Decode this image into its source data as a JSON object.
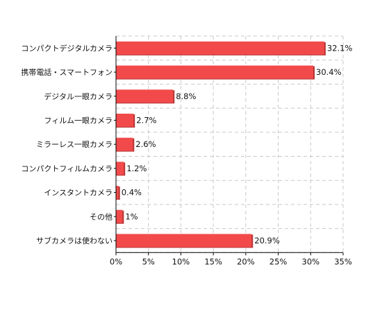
{
  "chart_data": {
    "type": "bar",
    "orientation": "horizontal",
    "categories": [
      "コンパクトデジタルカメラ",
      "携帯電話・スマートフォン",
      "デジタル一眼カメラ",
      "フィルム一眼カメラ",
      "ミラーレス一眼カメラ",
      "コンパクトフィルムカメラ",
      "インスタントカメラ",
      "その他",
      "サブカメラは使わない"
    ],
    "values": [
      32.1,
      30.4,
      8.8,
      2.7,
      2.6,
      1.2,
      0.4,
      1,
      20.9
    ],
    "value_labels": [
      "32.1%",
      "30.4%",
      "8.8%",
      "2.7%",
      "2.6%",
      "1.2%",
      "0.4%",
      "1%",
      "20.9%"
    ],
    "xlim": [
      0,
      35
    ],
    "x_ticks": [
      0,
      5,
      10,
      15,
      20,
      25,
      30,
      35
    ],
    "x_tick_labels": [
      "0%",
      "5%",
      "10%",
      "15%",
      "20%",
      "25%",
      "30%",
      "35%"
    ],
    "grid": true,
    "bar_color": "#f24a4a",
    "bar_shadow_color": "#b53535"
  }
}
